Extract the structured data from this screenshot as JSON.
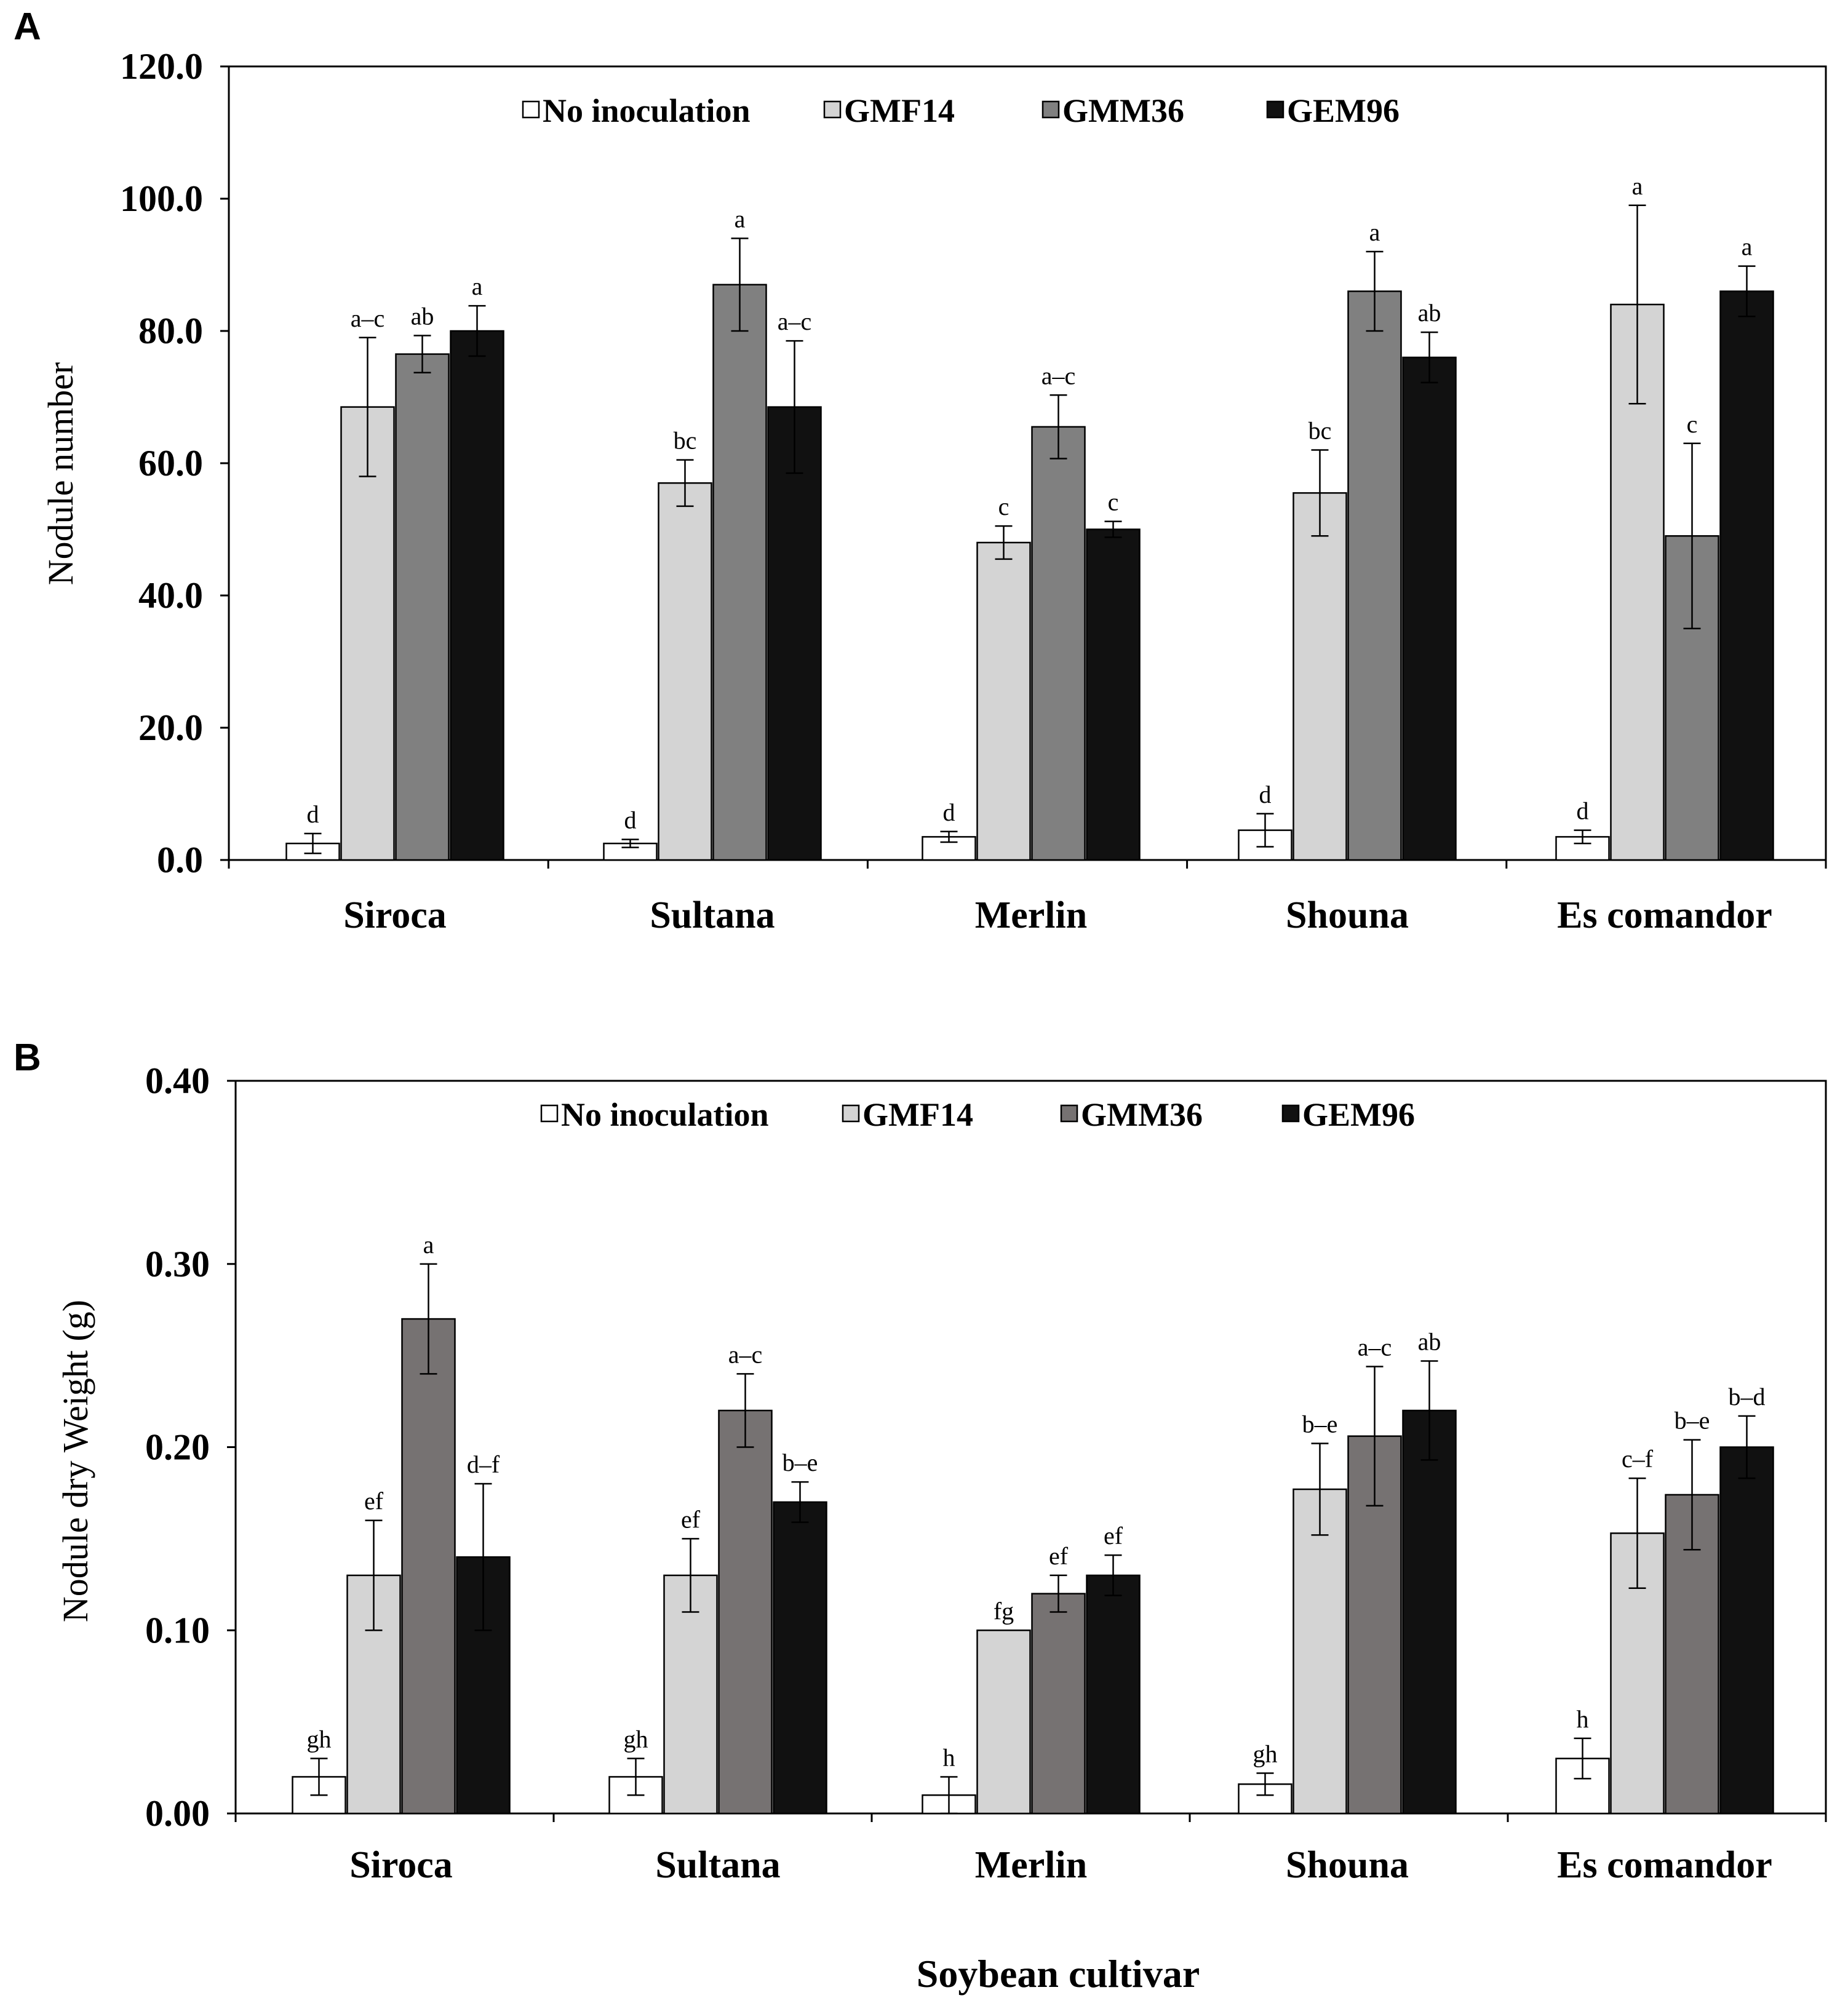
{
  "figure": {
    "xaxis_title": "Soybean cultivar"
  },
  "chart_data": [
    {
      "type": "bar",
      "panel": "A",
      "title": "",
      "ylabel": "Nodule number",
      "xlabel": "",
      "ylim": [
        0,
        120
      ],
      "yticks": [
        "0.0",
        "20.0",
        "40.0",
        "60.0",
        "80.0",
        "100.0",
        "120.0"
      ],
      "categories": [
        "Siroca",
        "Sultana",
        "Merlin",
        "Shouna",
        "Es comandor"
      ],
      "legend_position": "top",
      "series": [
        {
          "name": "No inoculation",
          "color": "#ffffff",
          "values": [
            2.5,
            2.5,
            3.5,
            4.5,
            3.5
          ],
          "errors": [
            1.5,
            0.6,
            0.8,
            2.5,
            1.0
          ],
          "labels": [
            "d",
            "d",
            "d",
            "d",
            "d"
          ]
        },
        {
          "name": "GMF14",
          "color": "#d4d4d4",
          "values": [
            68.5,
            57.0,
            48.0,
            55.5,
            84.0
          ],
          "errors": [
            10.5,
            3.5,
            2.5,
            6.5,
            15.0
          ],
          "labels": [
            "a–c",
            "bc",
            "c",
            "bc",
            "a"
          ]
        },
        {
          "name": "GMM36",
          "color": "#808080",
          "values": [
            76.5,
            87.0,
            65.5,
            86.0,
            49.0
          ],
          "errors": [
            2.8,
            7.0,
            4.8,
            6.0,
            14.0
          ],
          "labels": [
            "ab",
            "a",
            "a–c",
            "a",
            "c"
          ]
        },
        {
          "name": "GEM96",
          "color": "#111111",
          "values": [
            80.0,
            68.5,
            50.0,
            76.0,
            86.0
          ],
          "errors": [
            3.8,
            10.0,
            1.2,
            3.8,
            3.8
          ],
          "labels": [
            "a",
            "a–c",
            "c",
            "ab",
            "a"
          ]
        }
      ]
    },
    {
      "type": "bar",
      "panel": "B",
      "title": "",
      "ylabel": "Nodule dry Weight  (g)",
      "xlabel": "Soybean cultivar",
      "ylim": [
        0,
        0.4
      ],
      "yticks": [
        "0.00",
        "0.10",
        "0.20",
        "0.30",
        "0.40"
      ],
      "categories": [
        "Siroca",
        "Sultana",
        "Merlin",
        "Shouna",
        "Es comandor"
      ],
      "legend_position": "top",
      "series": [
        {
          "name": "No inoculation",
          "color": "#ffffff",
          "values": [
            0.02,
            0.02,
            0.01,
            0.016,
            0.03
          ],
          "errors": [
            0.01,
            0.01,
            0.01,
            0.006,
            0.011
          ],
          "labels": [
            "gh",
            "gh",
            "h",
            "gh",
            "h"
          ]
        },
        {
          "name": "GMF14",
          "color": "#d4d4d4",
          "values": [
            0.13,
            0.13,
            0.1,
            0.177,
            0.153
          ],
          "errors": [
            0.03,
            0.02,
            0.0,
            0.025,
            0.03
          ],
          "labels": [
            "ef",
            "ef",
            "fg",
            "b–e",
            "c–f"
          ]
        },
        {
          "name": "GMM36",
          "color": "#767272",
          "values": [
            0.27,
            0.22,
            0.12,
            0.206,
            0.174
          ],
          "errors": [
            0.03,
            0.02,
            0.01,
            0.038,
            0.03
          ],
          "labels": [
            "a",
            "a–c",
            "ef",
            "a–c",
            "b–e"
          ]
        },
        {
          "name": "GEM96",
          "color": "#111111",
          "values": [
            0.14,
            0.17,
            0.13,
            0.22,
            0.2
          ],
          "errors": [
            0.04,
            0.011,
            0.011,
            0.027,
            0.017
          ],
          "labels": [
            "d–f",
            "b–e",
            "ef",
            "ab",
            "b–d"
          ]
        }
      ]
    }
  ]
}
